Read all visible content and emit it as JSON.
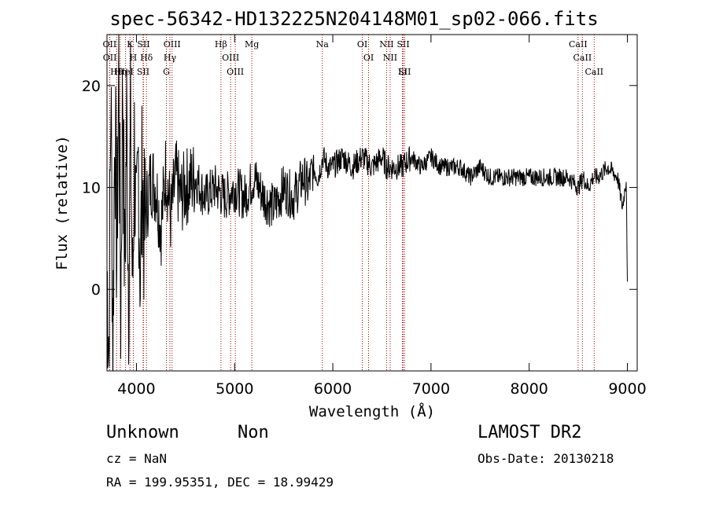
{
  "title": "spec-56342-HD132225N204148M01_sp02-066.fits",
  "footer": {
    "class": "Unknown",
    "subclass": "Non",
    "survey": "LAMOST DR2",
    "cz": "cz = NaN",
    "obs_date": "Obs-Date: 20130218",
    "coords": "RA = 199.95351, DEC =  18.99429"
  },
  "chart_data": {
    "type": "line",
    "title": "spec-56342-HD132225N204148M01_sp02-066.fits",
    "xlabel": "Wavelength (Å)",
    "ylabel": "Flux (relative)",
    "xlim": [
      3700,
      9100
    ],
    "ylim": [
      -8,
      25
    ],
    "xticks": [
      4000,
      5000,
      6000,
      7000,
      8000,
      9000
    ],
    "yticks": [
      0,
      10,
      20
    ],
    "grid": false,
    "line_color": "#000000",
    "marker_color": "#aa0000",
    "series": [
      {
        "x": [
          3700,
          3720,
          3740,
          3760,
          3780,
          3800,
          3820,
          3840,
          3860,
          3880,
          3900,
          3920,
          3940,
          3960,
          3980,
          4000,
          4020,
          4040,
          4060,
          4080,
          4100,
          4150,
          4200,
          4250,
          4300,
          4350,
          4400,
          4450,
          4500,
          4600,
          4700,
          4800,
          4900,
          5000,
          5100,
          5200,
          5300,
          5400,
          5500,
          5600,
          5700,
          5750,
          5800,
          5850,
          5900,
          5950,
          6000,
          6100,
          6200,
          6300,
          6400,
          6500,
          6550,
          6600,
          6700,
          6800,
          6900,
          7000,
          7100,
          7200,
          7300,
          7400,
          7500,
          7600,
          7700,
          7800,
          7900,
          8000,
          8100,
          8200,
          8300,
          8400,
          8500,
          8550,
          8600,
          8650,
          8700,
          8800,
          8900,
          8950,
          8990,
          9000
        ],
        "y": [
          2,
          -5,
          20,
          -6,
          18,
          3,
          22,
          -2,
          21,
          1,
          17,
          0,
          16,
          -1,
          14,
          3,
          13,
          1,
          12,
          5,
          8,
          11,
          10,
          6,
          12,
          7,
          11,
          9,
          10,
          11,
          9,
          10,
          9,
          10,
          9,
          11,
          9,
          8,
          10,
          9,
          11,
          10,
          12,
          11,
          13,
          12,
          12,
          13,
          12,
          13,
          12,
          13,
          12,
          12,
          12,
          13,
          12,
          13,
          12,
          12,
          12,
          11,
          12,
          11,
          11,
          11,
          11,
          11,
          11,
          11,
          11,
          11,
          10,
          11,
          10,
          11,
          11,
          12,
          11,
          8,
          11,
          0
        ]
      }
    ],
    "line_markers": [
      {
        "label": "OII",
        "x": 3727
      },
      {
        "label": "OII",
        "x": 3729
      },
      {
        "label": "Hθ",
        "x": 3798
      },
      {
        "label": "Hη",
        "x": 3835
      },
      {
        "label": "K",
        "x": 3934
      },
      {
        "label": "H",
        "x": 3968
      },
      {
        "label": "HeI",
        "x": 3889
      },
      {
        "label": "SII",
        "x": 4072
      },
      {
        "label": "Hδ",
        "x": 4102
      },
      {
        "label": "SII",
        "x": 4068
      },
      {
        "label": "OIII",
        "x": 4363
      },
      {
        "label": "Hγ",
        "x": 4341
      },
      {
        "label": "G",
        "x": 4305
      },
      {
        "label": "Hβ",
        "x": 4861
      },
      {
        "label": "OIII",
        "x": 4959
      },
      {
        "label": "OIII",
        "x": 5007
      },
      {
        "label": "Mg",
        "x": 5175
      },
      {
        "label": "Na",
        "x": 5893
      },
      {
        "label": "OI",
        "x": 6300
      },
      {
        "label": "OI",
        "x": 6364
      },
      {
        "label": "NII",
        "x": 6548
      },
      {
        "label": "NII",
        "x": 6584
      },
      {
        "label": "SII",
        "x": 6717
      },
      {
        "label": "SII",
        "x": 6731
      },
      {
        "label": "Li",
        "x": 6708
      },
      {
        "label": "CaII",
        "x": 8498
      },
      {
        "label": "CaII",
        "x": 8542
      },
      {
        "label": "CaII",
        "x": 8662
      }
    ]
  }
}
